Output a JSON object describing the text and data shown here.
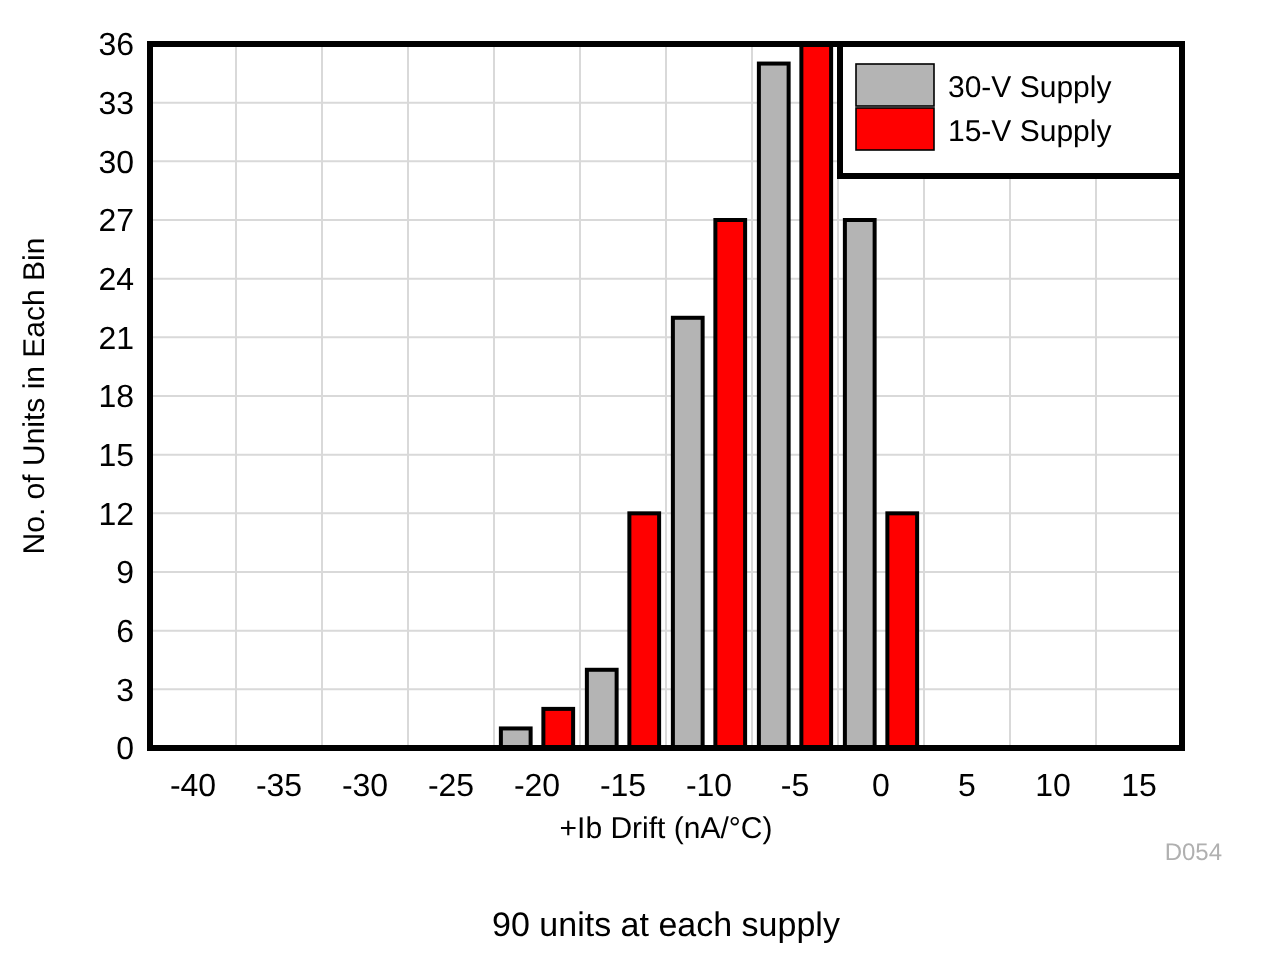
{
  "chart_data": {
    "type": "bar",
    "xlabel": "+Ib Drift (nA/°C)",
    "ylabel": "No. of Units in Each Bin",
    "categories": [
      "-40",
      "-35",
      "-30",
      "-25",
      "-20",
      "-15",
      "-10",
      "-5",
      "0",
      "5",
      "10",
      "15"
    ],
    "series": [
      {
        "name": "30-V Supply",
        "color": "#b4b4b4",
        "values": [
          0,
          0,
          0,
          0,
          1,
          4,
          22,
          35,
          27,
          0,
          0,
          0
        ]
      },
      {
        "name": "15-V Supply",
        "color": "#ff0000",
        "values": [
          0,
          0,
          0,
          0,
          2,
          12,
          27,
          36,
          12,
          0,
          0,
          0
        ]
      }
    ],
    "ylim": [
      0,
      36
    ],
    "yticks": [
      0,
      3,
      6,
      9,
      12,
      15,
      18,
      21,
      24,
      27,
      30,
      33,
      36
    ],
    "grid": true,
    "legend": "top right",
    "annotations": [
      "D054",
      "90 units at each supply"
    ]
  }
}
